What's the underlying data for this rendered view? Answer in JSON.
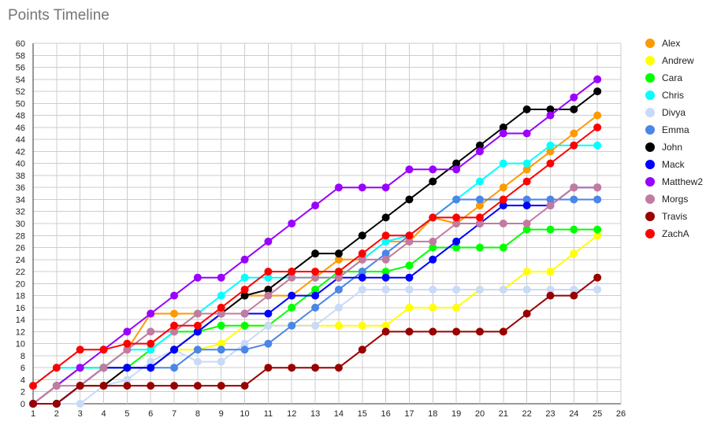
{
  "chart_data": {
    "type": "line",
    "title": "Points Timeline",
    "xlabel": "",
    "ylabel": "",
    "xlim": [
      1,
      26
    ],
    "ylim": [
      0,
      60
    ],
    "x_ticks": [
      1,
      2,
      3,
      4,
      5,
      6,
      7,
      8,
      9,
      10,
      11,
      12,
      13,
      14,
      15,
      16,
      17,
      18,
      19,
      20,
      21,
      22,
      23,
      24,
      25,
      26
    ],
    "y_ticks": [
      0,
      2,
      4,
      6,
      8,
      10,
      12,
      14,
      16,
      18,
      20,
      22,
      24,
      26,
      28,
      30,
      32,
      34,
      36,
      38,
      40,
      42,
      44,
      46,
      48,
      50,
      52,
      54,
      56,
      58,
      60
    ],
    "grid": true,
    "legend_position": "right",
    "x": [
      1,
      2,
      3,
      4,
      5,
      6,
      7,
      8,
      9,
      10,
      11,
      12,
      13,
      14,
      15,
      16,
      17,
      18,
      19,
      20,
      21,
      22,
      23,
      24,
      25
    ],
    "series": [
      {
        "name": "Alex",
        "color": "#ff9900",
        "values": [
          0,
          3,
          6,
          6,
          9,
          15,
          15,
          15,
          15,
          18,
          18,
          18,
          21,
          24,
          24,
          27,
          27,
          31,
          30,
          33,
          36,
          39,
          42,
          45,
          48
        ]
      },
      {
        "name": "Andrew",
        "color": "#ffff00",
        "values": [
          0,
          0,
          3,
          3,
          6,
          6,
          9,
          9,
          10,
          13,
          13,
          13,
          13,
          13,
          13,
          13,
          16,
          16,
          16,
          19,
          19,
          22,
          22,
          25,
          28
        ]
      },
      {
        "name": "Cara",
        "color": "#00ff00",
        "values": [
          0,
          3,
          6,
          6,
          6,
          9,
          12,
          12,
          13,
          13,
          13,
          16,
          19,
          22,
          22,
          22,
          23,
          26,
          26,
          26,
          26,
          29,
          29,
          29,
          29
        ]
      },
      {
        "name": "Chris",
        "color": "#00ffff",
        "values": [
          3,
          6,
          6,
          6,
          9,
          9,
          12,
          15,
          18,
          21,
          21,
          21,
          21,
          21,
          24,
          27,
          28,
          31,
          34,
          37,
          40,
          40,
          43,
          43,
          43
        ]
      },
      {
        "name": "Divya",
        "color": "#c9daf8",
        "values": [
          0,
          0,
          0,
          3,
          4,
          7,
          9,
          7,
          7,
          10,
          13,
          13,
          13,
          16,
          19,
          19,
          19,
          19,
          19,
          19,
          19,
          19,
          19,
          19,
          19
        ]
      },
      {
        "name": "Emma",
        "color": "#4a86e8",
        "values": [
          0,
          0,
          3,
          6,
          6,
          6,
          6,
          9,
          9,
          9,
          10,
          13,
          16,
          19,
          22,
          25,
          28,
          31,
          34,
          34,
          34,
          34,
          34,
          34,
          34
        ]
      },
      {
        "name": "John",
        "color": "#000000",
        "values": [
          0,
          0,
          3,
          3,
          6,
          6,
          9,
          12,
          15,
          18,
          19,
          22,
          25,
          25,
          28,
          31,
          34,
          37,
          40,
          43,
          46,
          49,
          49,
          49,
          52
        ]
      },
      {
        "name": "Mack",
        "color": "#0000ff",
        "values": [
          0,
          0,
          3,
          6,
          6,
          6,
          9,
          12,
          15,
          15,
          15,
          18,
          18,
          21,
          21,
          21,
          21,
          24,
          27,
          30,
          33,
          33,
          33,
          36,
          36
        ]
      },
      {
        "name": "Matthew2",
        "color": "#9900ff",
        "values": [
          0,
          3,
          6,
          9,
          12,
          15,
          18,
          21,
          21,
          24,
          27,
          30,
          33,
          36,
          36,
          36,
          39,
          39,
          39,
          42,
          45,
          45,
          48,
          51,
          54
        ]
      },
      {
        "name": "Morgs",
        "color": "#c27ba0",
        "values": [
          0,
          3,
          3,
          6,
          9,
          12,
          12,
          15,
          15,
          15,
          18,
          21,
          21,
          21,
          24,
          24,
          27,
          27,
          30,
          30,
          30,
          30,
          33,
          36,
          36
        ]
      },
      {
        "name": "Travis",
        "color": "#990000",
        "values": [
          0,
          0,
          3,
          3,
          3,
          3,
          3,
          3,
          3,
          3,
          6,
          6,
          6,
          6,
          9,
          12,
          12,
          12,
          12,
          12,
          12,
          15,
          18,
          18,
          21
        ]
      },
      {
        "name": "ZachA",
        "color": "#ff0000",
        "values": [
          3,
          6,
          9,
          9,
          10,
          10,
          13,
          13,
          16,
          19,
          22,
          22,
          22,
          22,
          25,
          28,
          28,
          31,
          31,
          31,
          34,
          37,
          40,
          43,
          46
        ]
      }
    ]
  }
}
